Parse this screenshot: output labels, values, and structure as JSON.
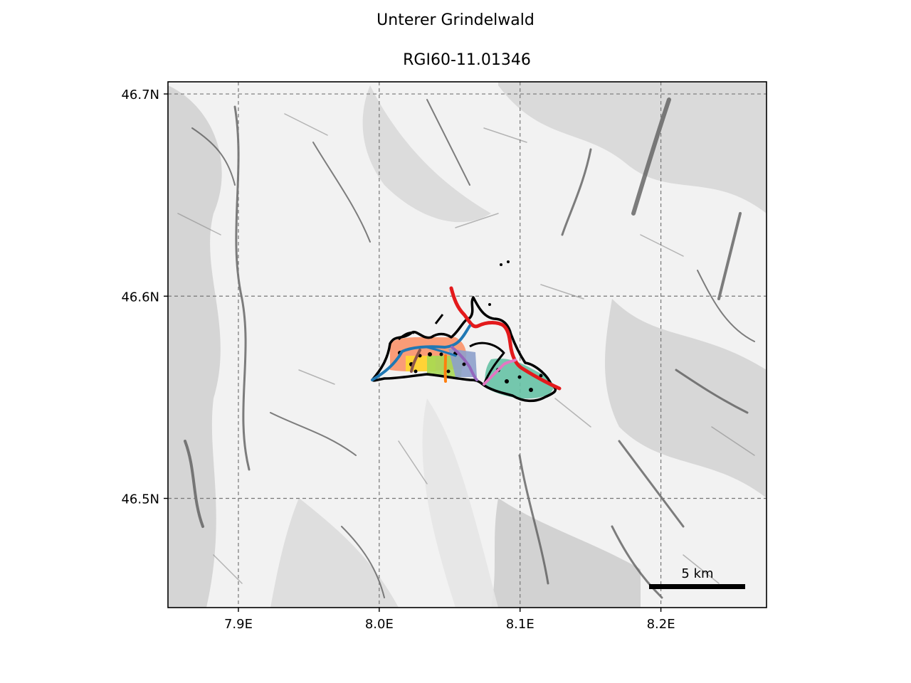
{
  "title": "Unterer Grindelwald",
  "subtitle": "RGI60-11.01346",
  "map": {
    "background": "hillshade",
    "grid": true,
    "lon_range": [
      7.85,
      8.275
    ],
    "lat_range": [
      46.446,
      46.706
    ],
    "lon_ticks": [
      {
        "value": 7.9,
        "label": "7.9E"
      },
      {
        "value": 8.0,
        "label": "8.0E"
      },
      {
        "value": 8.1,
        "label": "8.1E"
      },
      {
        "value": 8.2,
        "label": "8.2E"
      }
    ],
    "lat_ticks": [
      {
        "value": 46.7,
        "label": "46.7N"
      },
      {
        "value": 46.6,
        "label": "46.6N"
      },
      {
        "value": 46.5,
        "label": "46.5N"
      }
    ],
    "scale_bar": {
      "label": "5 km",
      "color": "#000000"
    },
    "glacier_outline_color": "#000000",
    "flowline_colors": [
      "#e31a1c",
      "#1f78b4",
      "#e377c2",
      "#9467bd",
      "#ff7f0e",
      "#8c564b",
      "#66c2a5",
      "#fc8d62",
      "#a6d854",
      "#ffd92f"
    ]
  }
}
